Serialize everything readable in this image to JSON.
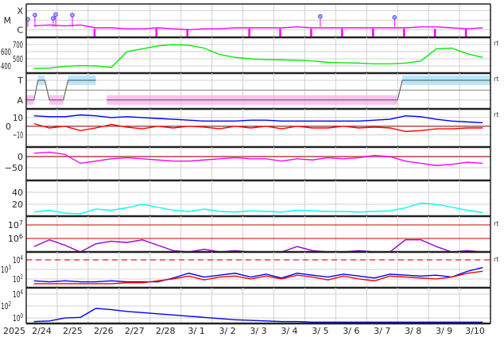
{
  "chart_data": {
    "type": "line",
    "x_start_label": "2025",
    "x_labels": [
      "2/24",
      "2/25",
      "2/26",
      "2/27",
      "2/28",
      "3/ 1",
      "3/ 2",
      "3/ 3",
      "3/ 4",
      "3/ 5",
      "3/ 6",
      "3/ 7",
      "3/ 8",
      "3/ 9",
      "3/10"
    ],
    "x_unit": "days since 2/24 00:00, 2 samples/day",
    "rt_label": "rt",
    "panels": [
      {
        "id": "xray",
        "scale": "log",
        "ylim": [
          -6.8,
          -3.3
        ],
        "tick_labels": [
          {
            "v": -4,
            "t": "X"
          },
          {
            "v": -5,
            "t": "M"
          },
          {
            "v": -6,
            "t": "C"
          }
        ],
        "series": [
          {
            "name": "X-ray flux",
            "color": "#ff00ff",
            "values": [
              -5.6,
              -5.5,
              -5.6,
              -5.5,
              -5.8,
              -5.8,
              -5.9,
              -5.9,
              -5.8,
              -5.9,
              -6.0,
              -5.9,
              -5.9,
              -5.8,
              -5.8,
              -5.8,
              -5.8,
              -5.7,
              -5.8,
              -5.8,
              -5.8,
              -5.8,
              -5.8,
              -5.8,
              -5.8,
              -5.7,
              -5.7,
              -5.8,
              -5.9,
              -5.8
            ]
          }
        ],
        "flares": [
          {
            "d": 0.05,
            "v": -4.9
          },
          {
            "d": 0.28,
            "v": -4.45
          },
          {
            "d": 0.87,
            "v": -4.8
          },
          {
            "d": 0.95,
            "v": -4.4
          },
          {
            "d": 1.49,
            "v": -4.45
          },
          {
            "d": 9.5,
            "v": -4.6
          },
          {
            "d": 11.9,
            "v": -4.7
          }
        ],
        "gap_marks": [
          2.2,
          4.2,
          5.2,
          7.2,
          8.2,
          9.2,
          10.2,
          11.2,
          12.2,
          13.2,
          14.2
        ],
        "rt": false
      },
      {
        "id": "wind-speed",
        "scale": "linear",
        "ylim": [
          300,
          800
        ],
        "tick_labels": [
          {
            "v": 700,
            "t": "700"
          },
          {
            "v": 600,
            "t": "600"
          },
          {
            "v": 500,
            "t": "500"
          },
          {
            "v": 400,
            "t": "400"
          }
        ],
        "series": [
          {
            "name": "Solar wind speed",
            "color": "#00ee00",
            "values": [
              365,
              370,
              395,
              405,
              400,
              380,
              600,
              640,
              680,
              700,
              690,
              650,
              560,
              520,
              500,
              490,
              485,
              480,
              470,
              450,
              445,
              440,
              430,
              430,
              440,
              470,
              640,
              650,
              570,
              520
            ]
          }
        ],
        "rt": true
      },
      {
        "id": "imf-polarity",
        "scale": "category",
        "ylim": [
          0,
          1
        ],
        "tick_labels": [
          {
            "v": 0.8,
            "t": "T"
          },
          {
            "v": 0.25,
            "t": "A"
          }
        ],
        "mode": [
          [
            0,
            "A"
          ],
          [
            0.25,
            "A"
          ],
          [
            0.38,
            "T"
          ],
          [
            0.6,
            "T"
          ],
          [
            0.75,
            "A"
          ],
          [
            1.2,
            "A"
          ],
          [
            1.35,
            "T"
          ],
          [
            2.25,
            "T"
          ],
          [
            null,
            null
          ],
          [
            2.6,
            "A"
          ],
          [
            12.0,
            "A"
          ],
          [
            12.15,
            "T"
          ],
          [
            15,
            "T"
          ]
        ],
        "colors": {
          "T": "#aadfff",
          "A": "#ffb0f0",
          "mode": "#607060"
        },
        "rt": true
      },
      {
        "id": "imf-bz-bt",
        "scale": "linear",
        "ylim": [
          -24,
          20
        ],
        "tick_labels": [
          {
            "v": 10,
            "t": "10"
          },
          {
            "v": 0,
            "t": "0"
          },
          {
            "v": -10,
            "t": "−10"
          }
        ],
        "series": [
          {
            "name": "Bt",
            "color": "#0000ff",
            "values": [
              12,
              11,
              11,
              13,
              12,
              10,
              11,
              10,
              9,
              8,
              7,
              6,
              6,
              6,
              7,
              7,
              6,
              6,
              6,
              6,
              6,
              6,
              7,
              8,
              12,
              11,
              8,
              6,
              5,
              4
            ]
          },
          {
            "name": "Bz",
            "color": "#ff0000",
            "values": [
              3,
              -2,
              0,
              -5,
              -2,
              2,
              -1,
              -3,
              0,
              -2,
              0,
              -1,
              -3,
              0,
              -2,
              0,
              -3,
              0,
              -2,
              -2,
              0,
              -2,
              -1,
              -2,
              -6,
              -5,
              -3,
              -3,
              -2,
              -2
            ]
          }
        ],
        "rt": true
      },
      {
        "id": "dst",
        "scale": "linear",
        "ylim": [
          -107,
          43
        ],
        "tick_labels": [
          {
            "v": 0,
            "t": "0"
          },
          {
            "v": -50,
            "t": "−50"
          }
        ],
        "series": [
          {
            "name": "Dst",
            "color": "#ff00ff",
            "values": [
              15,
              20,
              10,
              -30,
              -20,
              -10,
              -5,
              -10,
              -15,
              -20,
              -20,
              -15,
              -10,
              -5,
              -10,
              -10,
              -20,
              -10,
              -15,
              -5,
              -10,
              -5,
              5,
              0,
              -20,
              -30,
              -40,
              -35,
              -25,
              -30
            ]
          }
        ],
        "rt": false
      },
      {
        "id": "ae-index",
        "scale": "linear",
        "ylim": [
          0,
          60
        ],
        "tick_labels": [
          {
            "v": 40,
            "t": "40"
          },
          {
            "v": 20,
            "t": "20"
          }
        ],
        "series": [
          {
            "name": "Index",
            "color": "#00ffff",
            "values": [
              7,
              10,
              5,
              4,
              12,
              10,
              14,
              20,
              15,
              10,
              8,
              12,
              8,
              7,
              9,
              8,
              7,
              10,
              9,
              8,
              8,
              7,
              8,
              9,
              14,
              22,
              20,
              15,
              10,
              6
            ]
          }
        ],
        "rt": false
      },
      {
        "id": "electrons",
        "scale": "log",
        "ylim": [
          5.0,
          7.65
        ],
        "tick_labels": [
          {
            "v": 7,
            "t": "10",
            "e": "7"
          },
          {
            "v": 6,
            "t": "10",
            "e": "6"
          }
        ],
        "thresholds": [
          7,
          6
        ],
        "series": [
          {
            "name": "Electron flux",
            "color": "#9900cc",
            "values": [
              5.4,
              5.9,
              5.5,
              5.0,
              5.6,
              5.8,
              5.7,
              5.9,
              5.5,
              5.1,
              5.0,
              5.2,
              5.0,
              5.1,
              5.0,
              5.0,
              5.0,
              5.4,
              5.1,
              5.0,
              5.0,
              5.1,
              5.0,
              5.0,
              5.9,
              5.9,
              5.4,
              5.0,
              5.1,
              5.0
            ]
          }
        ],
        "rt": true
      },
      {
        "id": "protons",
        "scale": "log",
        "ylim": [
          1.08,
          4.83
        ],
        "tick_labels": [
          {
            "v": 4,
            "t": "10",
            "e": "4"
          },
          {
            "v": 3,
            "t": "10",
            "e": "3"
          },
          {
            "v": 2,
            "t": "10",
            "e": "2"
          }
        ],
        "dashed_threshold": 4,
        "series": [
          {
            "name": "Protons >10MeV",
            "color": "#0000ff",
            "values": [
              1.8,
              1.7,
              1.8,
              1.7,
              1.7,
              1.8,
              1.7,
              1.7,
              1.7,
              2.1,
              2.6,
              2.2,
              2.4,
              2.6,
              2.2,
              2.5,
              2.1,
              2.6,
              2.4,
              2.2,
              2.5,
              2.3,
              2.1,
              2.5,
              2.4,
              2.3,
              2.4,
              2.2,
              2.8,
              3.2
            ]
          },
          {
            "name": "Protons",
            "color": "#ff0000",
            "values": [
              1.5,
              1.5,
              1.5,
              1.5,
              1.5,
              1.5,
              1.6,
              1.6,
              1.8,
              2.0,
              2.3,
              1.9,
              2.2,
              2.3,
              2.0,
              2.3,
              2.0,
              2.4,
              2.2,
              1.9,
              2.3,
              2.0,
              1.8,
              2.3,
              2.2,
              2.1,
              2.0,
              2.2,
              2.6,
              2.8
            ]
          }
        ],
        "rt": true
      },
      {
        "id": "particle-flux",
        "scale": "log",
        "ylim": [
          -0.93,
          5.07
        ],
        "tick_labels": [
          {
            "v": 4,
            "t": "10",
            "e": "4"
          },
          {
            "v": 2,
            "t": "10",
            "e": "2"
          },
          {
            "v": 0,
            "t": "10",
            "e": "0"
          }
        ],
        "series": [
          {
            "name": "Flux",
            "color": "#0000ff",
            "values": [
              -0.6,
              -0.5,
              0.0,
              0.1,
              1.6,
              1.4,
              1.1,
              0.9,
              0.7,
              0.5,
              0.3,
              0.1,
              -0.1,
              -0.3,
              -0.4,
              -0.5,
              -0.6,
              -0.6,
              -0.7,
              -0.7,
              -0.7,
              -0.7,
              -0.7,
              -0.7,
              -0.7,
              -0.7,
              -0.7,
              -0.7,
              -0.7,
              -0.7
            ]
          }
        ],
        "rt": false
      }
    ]
  }
}
